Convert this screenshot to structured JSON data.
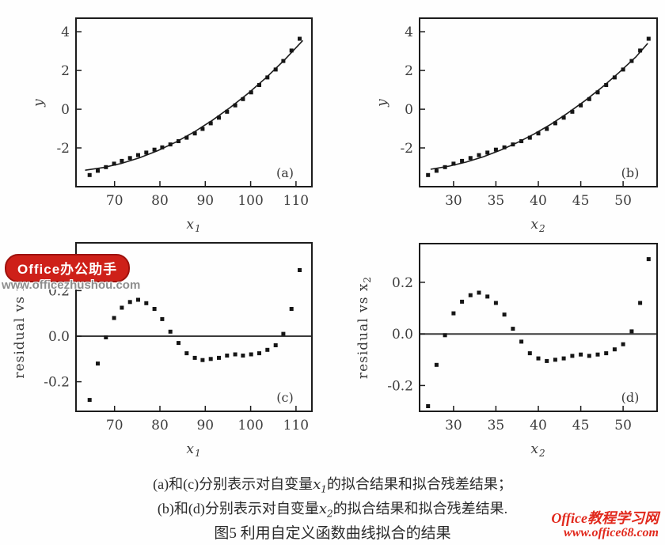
{
  "watermark_badge": {
    "label": "Office办公助手",
    "url": "www.officezhushou.com",
    "badge_color": "#ce2019",
    "url_color": "#8d8d8d"
  },
  "watermark_site": {
    "name": "Office教程学习网",
    "url": "www.office68.com",
    "color": "#e1291d"
  },
  "caption": {
    "line1_pre": "(a)和(c)分别表示对自变量",
    "line1_var": "x",
    "line1_sub": "1",
    "line1_post": "的拟合结果和拟合残差结果；",
    "line2_pre": "(b)和(d)分别表示对自变量",
    "line2_var": "x",
    "line2_sub": "2",
    "line2_post": "的拟合结果和拟合残差结果.",
    "line3": "图5 利用自定义函数曲线拟合的结果"
  },
  "chart_data": [
    {
      "id": "a",
      "type": "scatter",
      "corner_label": "(a)",
      "xlabel": {
        "base": "x",
        "sub": "1"
      },
      "ylabel": {
        "base": "y",
        "sub": "",
        "italic": true
      },
      "xlim": [
        61.5,
        113.5
      ],
      "ylim": [
        -4.0,
        4.7
      ],
      "xticks": [
        70,
        80,
        90,
        100,
        110
      ],
      "xticklabels": [
        "70",
        "80",
        "90",
        "100",
        "110"
      ],
      "yticks": [
        -2,
        0,
        2,
        4
      ],
      "yticklabels": [
        "-2",
        "0",
        "2",
        "4"
      ],
      "grid": false,
      "zero_line": false,
      "x": [
        64.5,
        66.3,
        68.1,
        69.9,
        71.6,
        73.4,
        75.2,
        77.0,
        78.8,
        80.5,
        82.3,
        84.1,
        85.9,
        87.7,
        89.4,
        91.2,
        93.0,
        94.8,
        96.6,
        98.3,
        100.1,
        101.9,
        103.7,
        105.5,
        107.2,
        109.0,
        110.8
      ],
      "y": [
        -3.4,
        -3.18,
        -2.99,
        -2.81,
        -2.67,
        -2.52,
        -2.37,
        -2.24,
        -2.09,
        -1.97,
        -1.82,
        -1.65,
        -1.47,
        -1.25,
        -1.02,
        -0.73,
        -0.44,
        -0.13,
        0.2,
        0.52,
        0.87,
        1.25,
        1.64,
        2.05,
        2.49,
        3.03,
        3.64
      ],
      "fit": {
        "x": [
          63.5,
          67.5,
          71.5,
          75.5,
          79.5,
          83.5,
          87.5,
          91.5,
          95.5,
          99.5,
          103.5,
          107.5,
          111.5
        ],
        "y": [
          -3.15,
          -3.01,
          -2.8,
          -2.51,
          -2.14,
          -1.7,
          -1.18,
          -0.58,
          0.09,
          0.83,
          1.65,
          2.55,
          3.55
        ]
      }
    },
    {
      "id": "b",
      "type": "scatter",
      "corner_label": "(b)",
      "xlabel": {
        "base": "x",
        "sub": "2"
      },
      "ylabel": {
        "base": "y",
        "sub": "",
        "italic": true
      },
      "xlim": [
        26,
        54
      ],
      "ylim": [
        -4.0,
        4.7
      ],
      "xticks": [
        30,
        35,
        40,
        45,
        50
      ],
      "xticklabels": [
        "30",
        "35",
        "40",
        "45",
        "50"
      ],
      "yticks": [
        -2,
        0,
        2,
        4
      ],
      "yticklabels": [
        "-2",
        "0",
        "2",
        "4"
      ],
      "grid": false,
      "zero_line": false,
      "x": [
        27,
        28,
        29,
        30,
        31,
        32,
        33,
        34,
        35,
        36,
        37,
        38,
        39,
        40,
        41,
        42,
        43,
        44,
        45,
        46,
        47,
        48,
        49,
        50,
        51,
        52,
        53
      ],
      "y": [
        -3.4,
        -3.18,
        -2.99,
        -2.81,
        -2.67,
        -2.52,
        -2.37,
        -2.24,
        -2.09,
        -1.97,
        -1.82,
        -1.65,
        -1.47,
        -1.25,
        -1.02,
        -0.73,
        -0.44,
        -0.13,
        0.2,
        0.52,
        0.87,
        1.25,
        1.64,
        2.05,
        2.49,
        3.03,
        3.64
      ],
      "fit": {
        "x": [
          27.3,
          29.5,
          31.5,
          33.5,
          35.5,
          37.5,
          39.5,
          41.5,
          43.5,
          45.5,
          47.5,
          49.5,
          51.5,
          52.9
        ],
        "y": [
          -3.1,
          -2.94,
          -2.73,
          -2.46,
          -2.12,
          -1.73,
          -1.28,
          -0.77,
          -0.19,
          0.44,
          1.13,
          1.89,
          2.7,
          3.4
        ]
      }
    },
    {
      "id": "c",
      "type": "scatter",
      "corner_label": "(c)",
      "xlabel": {
        "base": "x",
        "sub": "1"
      },
      "ylabel": {
        "base": "residual vs x",
        "sub": "1",
        "italic": false
      },
      "xlim": [
        61.5,
        113.5
      ],
      "ylim": [
        -0.33,
        0.41
      ],
      "xticks": [
        70,
        80,
        90,
        100,
        110
      ],
      "xticklabels": [
        "70",
        "80",
        "90",
        "100",
        "110"
      ],
      "yticks": [
        -0.2,
        0,
        0.2
      ],
      "yticklabels": [
        "-0.2",
        "0.0",
        "0.2"
      ],
      "grid": false,
      "zero_line": true,
      "x": [
        64.5,
        66.3,
        68.1,
        69.9,
        71.6,
        73.4,
        75.2,
        77.0,
        78.8,
        80.5,
        82.3,
        84.1,
        85.9,
        87.7,
        89.4,
        91.2,
        93.0,
        94.8,
        96.6,
        98.3,
        100.1,
        101.9,
        103.7,
        105.5,
        107.2,
        109.0,
        110.8
      ],
      "y": [
        -0.28,
        -0.12,
        -0.005,
        0.08,
        0.125,
        0.15,
        0.16,
        0.145,
        0.12,
        0.075,
        0.02,
        -0.03,
        -0.075,
        -0.095,
        -0.105,
        -0.1,
        -0.095,
        -0.085,
        -0.08,
        -0.085,
        -0.08,
        -0.075,
        -0.06,
        -0.04,
        0.01,
        0.12,
        0.29
      ]
    },
    {
      "id": "d",
      "type": "scatter",
      "corner_label": "(d)",
      "xlabel": {
        "base": "x",
        "sub": "2"
      },
      "ylabel": {
        "base": "residual vs x",
        "sub": "2",
        "italic": false
      },
      "xlim": [
        26,
        54
      ],
      "ylim": [
        -0.3,
        0.35
      ],
      "xticks": [
        30,
        35,
        40,
        45,
        50
      ],
      "xticklabels": [
        "30",
        "35",
        "40",
        "45",
        "50"
      ],
      "yticks": [
        -0.2,
        0,
        0.2
      ],
      "yticklabels": [
        "-0.2",
        "0.0",
        "0.2"
      ],
      "grid": false,
      "zero_line": true,
      "x": [
        27,
        28,
        29,
        30,
        31,
        32,
        33,
        34,
        35,
        36,
        37,
        38,
        39,
        40,
        41,
        42,
        43,
        44,
        45,
        46,
        47,
        48,
        49,
        50,
        51,
        52,
        53
      ],
      "y": [
        -0.28,
        -0.12,
        -0.005,
        0.08,
        0.125,
        0.15,
        0.16,
        0.145,
        0.12,
        0.075,
        0.02,
        -0.03,
        -0.075,
        -0.095,
        -0.105,
        -0.1,
        -0.095,
        -0.085,
        -0.08,
        -0.085,
        -0.08,
        -0.075,
        -0.06,
        -0.04,
        0.01,
        0.12,
        0.29
      ]
    }
  ]
}
